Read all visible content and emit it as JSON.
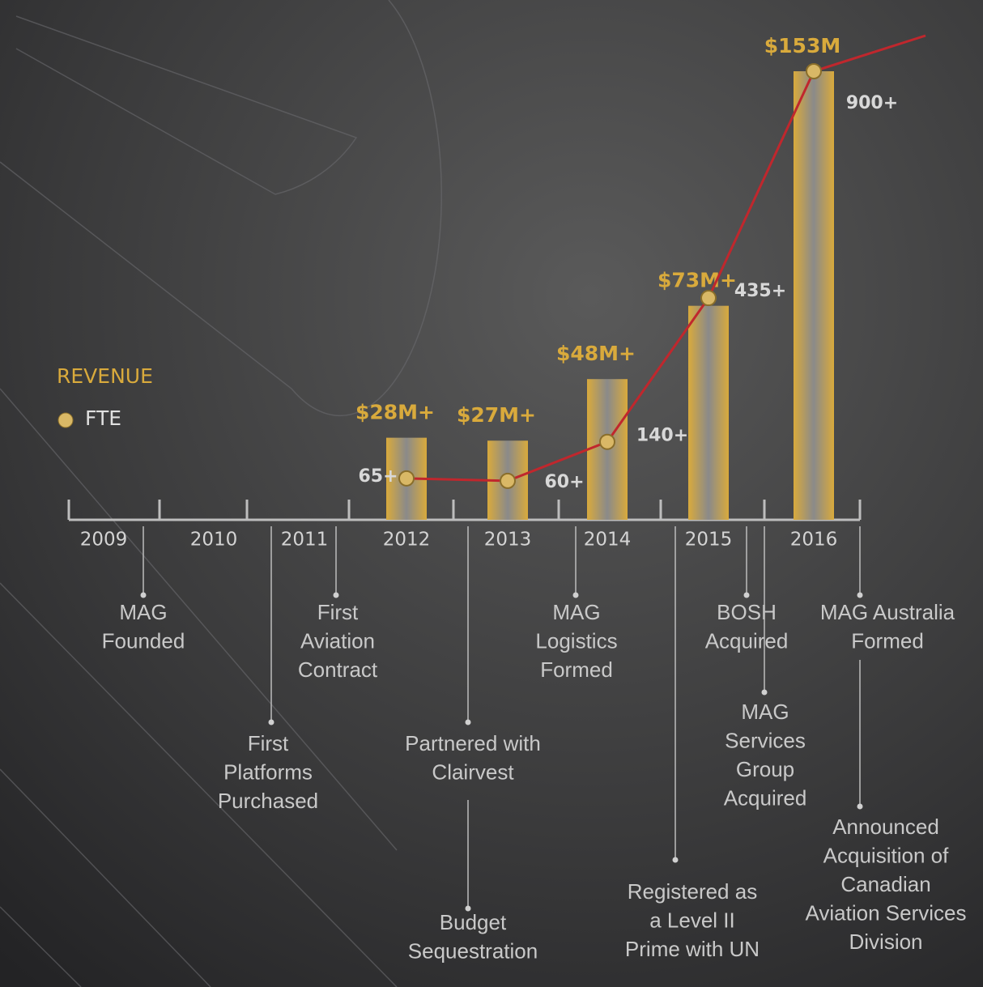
{
  "chart_data": {
    "type": "bar-line",
    "categories": [
      "2009",
      "2010",
      "2011",
      "2012",
      "2013",
      "2014",
      "2015",
      "2016"
    ],
    "series": [
      {
        "name": "REVENUE",
        "color": "#d9aa3c",
        "values": [
          null,
          null,
          null,
          28,
          27,
          48,
          73,
          153
        ],
        "value_labels": [
          null,
          null,
          null,
          "$28M+",
          "$27M+",
          "$48M+",
          "$73M+",
          "$153M"
        ]
      },
      {
        "name": "FTE",
        "color": "#c0272d",
        "values": [
          null,
          null,
          null,
          65,
          60,
          140,
          435,
          900
        ],
        "value_labels": [
          null,
          null,
          null,
          "65+",
          "60+",
          "140+",
          "435+",
          "900+"
        ]
      }
    ],
    "events": [
      {
        "lines": [
          "MAG",
          "Founded"
        ]
      },
      {
        "lines": [
          "First",
          "Platforms",
          "Purchased"
        ]
      },
      {
        "lines": [
          "First",
          "Aviation",
          "Contract"
        ]
      },
      {
        "lines": [
          "Partnered with",
          "Clairvest"
        ]
      },
      {
        "lines": [
          "Budget",
          "Sequestration"
        ]
      },
      {
        "lines": [
          "MAG",
          "Logistics",
          "Formed"
        ]
      },
      {
        "lines": [
          "Registered as",
          "a Level II",
          "Prime with UN"
        ]
      },
      {
        "lines": [
          "BOSH",
          "Acquired"
        ]
      },
      {
        "lines": [
          "MAG",
          "Services",
          "Group",
          "Acquired"
        ]
      },
      {
        "lines": [
          "MAG Australia",
          "Formed"
        ]
      },
      {
        "lines": [
          "Announced",
          "Acquisition of",
          "Canadian",
          "Aviation Services",
          "Division"
        ]
      }
    ]
  }
}
